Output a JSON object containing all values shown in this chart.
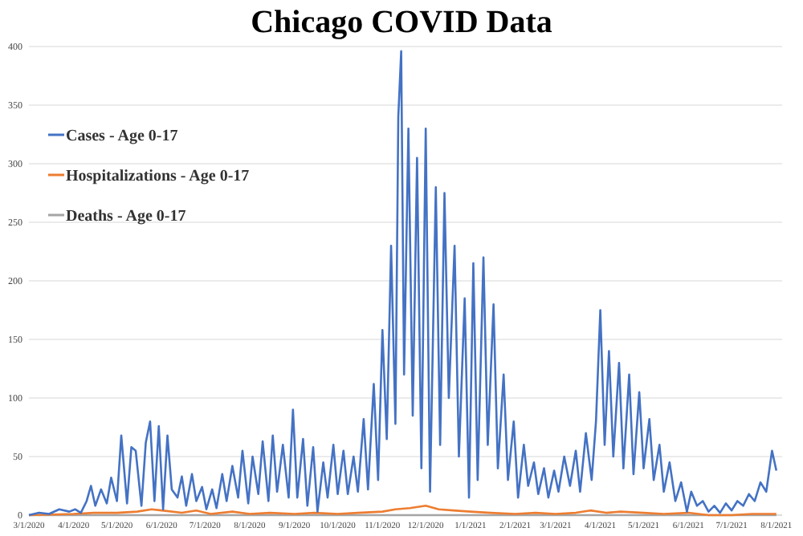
{
  "chart_data": {
    "type": "line",
    "title": "Chicago COVID Data",
    "legend": "top left",
    "grid": "y",
    "line_style": "solid",
    "marker": "none",
    "ylim": [
      0,
      400
    ],
    "yticks": [
      0,
      50,
      100,
      150,
      200,
      250,
      300,
      350,
      400
    ],
    "xlim": [
      "2020-03-01",
      "2021-08-05"
    ],
    "xticks": [
      {
        "value": "2020-03-01",
        "label": "3/1/2020"
      },
      {
        "value": "2020-04-01",
        "label": "4/1/2020"
      },
      {
        "value": "2020-05-01",
        "label": "5/1/2020"
      },
      {
        "value": "2020-06-01",
        "label": "6/1/2020"
      },
      {
        "value": "2020-07-01",
        "label": "7/1/2020"
      },
      {
        "value": "2020-08-01",
        "label": "8/1/2020"
      },
      {
        "value": "2020-09-01",
        "label": "9/1/2020"
      },
      {
        "value": "2020-10-01",
        "label": "10/1/2020"
      },
      {
        "value": "2020-11-01",
        "label": "11/1/2020"
      },
      {
        "value": "2020-12-01",
        "label": "12/1/2020"
      },
      {
        "value": "2021-01-01",
        "label": "1/1/2021"
      },
      {
        "value": "2021-02-01",
        "label": "2/1/2021"
      },
      {
        "value": "2021-03-01",
        "label": "3/1/2021"
      },
      {
        "value": "2021-04-01",
        "label": "4/1/2021"
      },
      {
        "value": "2021-05-01",
        "label": "5/1/2021"
      },
      {
        "value": "2021-06-01",
        "label": "6/1/2021"
      },
      {
        "value": "2021-07-01",
        "label": "7/1/2021"
      },
      {
        "value": "2021-08-01",
        "label": "8/1/2021"
      }
    ],
    "series": [
      {
        "name": "Cases - Age 0-17",
        "color": "#4472c4",
        "x": [
          "2020-03-01",
          "2020-03-08",
          "2020-03-15",
          "2020-03-22",
          "2020-03-29",
          "2020-04-02",
          "2020-04-06",
          "2020-04-10",
          "2020-04-13",
          "2020-04-16",
          "2020-04-20",
          "2020-04-24",
          "2020-04-27",
          "2020-05-01",
          "2020-05-04",
          "2020-05-08",
          "2020-05-11",
          "2020-05-14",
          "2020-05-18",
          "2020-05-21",
          "2020-05-24",
          "2020-05-27",
          "2020-05-30",
          "2020-06-02",
          "2020-06-05",
          "2020-06-08",
          "2020-06-12",
          "2020-06-15",
          "2020-06-18",
          "2020-06-22",
          "2020-06-25",
          "2020-06-29",
          "2020-07-02",
          "2020-07-06",
          "2020-07-09",
          "2020-07-13",
          "2020-07-16",
          "2020-07-20",
          "2020-07-24",
          "2020-07-27",
          "2020-07-31",
          "2020-08-03",
          "2020-08-07",
          "2020-08-10",
          "2020-08-14",
          "2020-08-17",
          "2020-08-20",
          "2020-08-24",
          "2020-08-28",
          "2020-08-31",
          "2020-09-03",
          "2020-09-07",
          "2020-09-10",
          "2020-09-14",
          "2020-09-17",
          "2020-09-21",
          "2020-09-24",
          "2020-09-28",
          "2020-10-01",
          "2020-10-05",
          "2020-10-08",
          "2020-10-12",
          "2020-10-15",
          "2020-10-19",
          "2020-10-22",
          "2020-10-26",
          "2020-10-29",
          "2020-11-01",
          "2020-11-04",
          "2020-11-07",
          "2020-11-10",
          "2020-11-12",
          "2020-11-14",
          "2020-11-16",
          "2020-11-19",
          "2020-11-22",
          "2020-11-25",
          "2020-11-28",
          "2020-12-01",
          "2020-12-04",
          "2020-12-08",
          "2020-12-11",
          "2020-12-14",
          "2020-12-17",
          "2020-12-21",
          "2020-12-24",
          "2020-12-28",
          "2020-12-31",
          "2021-01-03",
          "2021-01-06",
          "2021-01-10",
          "2021-01-13",
          "2021-01-17",
          "2021-01-20",
          "2021-01-24",
          "2021-01-27",
          "2021-01-31",
          "2021-02-03",
          "2021-02-07",
          "2021-02-10",
          "2021-02-14",
          "2021-02-17",
          "2021-02-21",
          "2021-02-24",
          "2021-02-28",
          "2021-03-03",
          "2021-03-07",
          "2021-03-11",
          "2021-03-15",
          "2021-03-18",
          "2021-03-22",
          "2021-03-26",
          "2021-03-29",
          "2021-04-01",
          "2021-04-04",
          "2021-04-07",
          "2021-04-10",
          "2021-04-14",
          "2021-04-17",
          "2021-04-21",
          "2021-04-24",
          "2021-04-28",
          "2021-05-01",
          "2021-05-05",
          "2021-05-08",
          "2021-05-12",
          "2021-05-15",
          "2021-05-19",
          "2021-05-23",
          "2021-05-27",
          "2021-05-31",
          "2021-06-03",
          "2021-06-07",
          "2021-06-11",
          "2021-06-15",
          "2021-06-19",
          "2021-06-23",
          "2021-06-27",
          "2021-07-01",
          "2021-07-05",
          "2021-07-09",
          "2021-07-13",
          "2021-07-17",
          "2021-07-21",
          "2021-07-25",
          "2021-07-29",
          "2021-08-01"
        ],
        "values": [
          0,
          2,
          1,
          5,
          3,
          5,
          2,
          12,
          25,
          8,
          22,
          10,
          32,
          12,
          68,
          10,
          58,
          55,
          8,
          62,
          80,
          12,
          76,
          5,
          68,
          22,
          15,
          33,
          8,
          35,
          12,
          24,
          5,
          22,
          6,
          35,
          12,
          42,
          15,
          55,
          10,
          50,
          18,
          63,
          12,
          68,
          20,
          60,
          15,
          90,
          15,
          65,
          8,
          58,
          3,
          45,
          15,
          60,
          18,
          55,
          18,
          50,
          20,
          82,
          22,
          112,
          30,
          158,
          65,
          230,
          78,
          340,
          396,
          120,
          330,
          85,
          305,
          40,
          330,
          20,
          280,
          60,
          275,
          100,
          230,
          50,
          185,
          15,
          215,
          30,
          220,
          60,
          180,
          40,
          120,
          30,
          80,
          15,
          60,
          25,
          45,
          18,
          40,
          15,
          38,
          20,
          50,
          25,
          55,
          20,
          70,
          30,
          80,
          175,
          60,
          140,
          50,
          130,
          40,
          120,
          35,
          105,
          40,
          82,
          30,
          60,
          20,
          45,
          12,
          28,
          3,
          20,
          8,
          12,
          3,
          8,
          2,
          10,
          4,
          12,
          8,
          18,
          12,
          28,
          20,
          55,
          38
        ]
      },
      {
        "name": "Hospitalizations - Age 0-17",
        "color": "#ed7d31",
        "x": [
          "2020-03-01",
          "2020-04-01",
          "2020-04-15",
          "2020-05-01",
          "2020-05-15",
          "2020-05-25",
          "2020-06-01",
          "2020-06-15",
          "2020-06-25",
          "2020-07-05",
          "2020-07-20",
          "2020-08-01",
          "2020-08-15",
          "2020-09-01",
          "2020-09-15",
          "2020-10-01",
          "2020-10-15",
          "2020-11-01",
          "2020-11-10",
          "2020-11-20",
          "2020-12-01",
          "2020-12-10",
          "2020-12-20",
          "2021-01-01",
          "2021-01-15",
          "2021-02-01",
          "2021-02-15",
          "2021-03-01",
          "2021-03-15",
          "2021-03-25",
          "2021-04-05",
          "2021-04-15",
          "2021-05-01",
          "2021-05-15",
          "2021-06-01",
          "2021-06-15",
          "2021-07-01",
          "2021-07-15",
          "2021-08-01"
        ],
        "values": [
          0,
          1,
          2,
          2,
          3,
          5,
          4,
          2,
          4,
          1,
          3,
          1,
          2,
          1,
          2,
          1,
          2,
          3,
          5,
          6,
          8,
          5,
          4,
          3,
          2,
          1,
          2,
          1,
          2,
          4,
          2,
          3,
          2,
          1,
          2,
          0,
          0,
          1,
          1
        ]
      },
      {
        "name": "Deaths - Age 0-17",
        "color": "#a5a5a5",
        "x": [
          "2020-03-01",
          "2021-08-01"
        ],
        "values": [
          0,
          0
        ]
      }
    ]
  }
}
